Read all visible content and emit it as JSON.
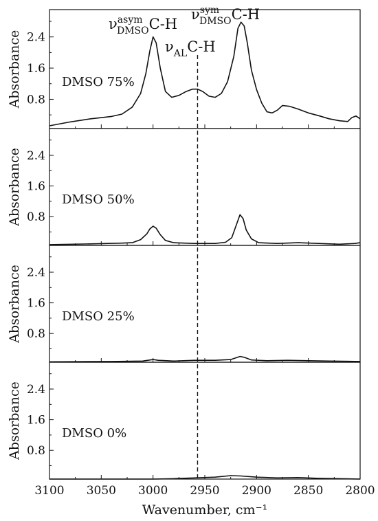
{
  "chart_data": {
    "type": "line",
    "layout": "stacked-panels",
    "xlabel": "Wavenumber, cm⁻¹",
    "xlim": [
      3100,
      2800
    ],
    "x_reversed": true,
    "x_ticks": [
      3100,
      3050,
      3000,
      2950,
      2900,
      2850,
      2800
    ],
    "x_tick_labels": [
      "3100",
      "3050",
      "3000",
      "2950",
      "2900",
      "2850",
      "2800"
    ],
    "ylabel": "Absorbance",
    "ylim": [
      0.05,
      3.1
    ],
    "y_ticks": [
      0.8,
      1.6,
      2.4
    ],
    "y_tick_labels": [
      "0.8",
      "1.6",
      "2.4"
    ],
    "grid": false,
    "reference_line": {
      "x": 2957,
      "style": "dashed"
    },
    "peak_labels": [
      {
        "base": "ν",
        "sup": "asym",
        "sub": "DMSO",
        "suffix": "C-H",
        "x": 3000
      },
      {
        "base": "ν",
        "sup": "",
        "sub": "AL",
        "suffix": "C-H",
        "x": 2957
      },
      {
        "base": "ν",
        "sup": "sym",
        "sub": "DMSO",
        "suffix": "C-H",
        "x": 2915
      }
    ],
    "panels": [
      {
        "label": "DMSO 75%",
        "points": [
          [
            3100,
            0.12
          ],
          [
            3080,
            0.22
          ],
          [
            3060,
            0.3
          ],
          [
            3040,
            0.36
          ],
          [
            3030,
            0.42
          ],
          [
            3020,
            0.6
          ],
          [
            3012,
            0.95
          ],
          [
            3007,
            1.45
          ],
          [
            3003,
            2.05
          ],
          [
            3000,
            2.4
          ],
          [
            2997,
            2.25
          ],
          [
            2993,
            1.6
          ],
          [
            2988,
            1.0
          ],
          [
            2982,
            0.85
          ],
          [
            2975,
            0.9
          ],
          [
            2968,
            1.0
          ],
          [
            2962,
            1.06
          ],
          [
            2957,
            1.06
          ],
          [
            2952,
            1.0
          ],
          [
            2946,
            0.88
          ],
          [
            2940,
            0.85
          ],
          [
            2934,
            0.95
          ],
          [
            2928,
            1.25
          ],
          [
            2922,
            1.9
          ],
          [
            2918,
            2.62
          ],
          [
            2915,
            2.78
          ],
          [
            2912,
            2.68
          ],
          [
            2909,
            2.25
          ],
          [
            2905,
            1.55
          ],
          [
            2900,
            1.05
          ],
          [
            2895,
            0.7
          ],
          [
            2890,
            0.48
          ],
          [
            2885,
            0.45
          ],
          [
            2880,
            0.52
          ],
          [
            2875,
            0.64
          ],
          [
            2868,
            0.62
          ],
          [
            2860,
            0.55
          ],
          [
            2850,
            0.45
          ],
          [
            2840,
            0.38
          ],
          [
            2830,
            0.3
          ],
          [
            2820,
            0.25
          ],
          [
            2812,
            0.23
          ],
          [
            2808,
            0.33
          ],
          [
            2804,
            0.37
          ],
          [
            2800,
            0.3
          ]
        ]
      },
      {
        "label": "DMSO 50%",
        "points": [
          [
            3100,
            0.07
          ],
          [
            3060,
            0.09
          ],
          [
            3030,
            0.11
          ],
          [
            3020,
            0.12
          ],
          [
            3012,
            0.2
          ],
          [
            3006,
            0.35
          ],
          [
            3003,
            0.48
          ],
          [
            3000,
            0.55
          ],
          [
            2997,
            0.5
          ],
          [
            2993,
            0.33
          ],
          [
            2988,
            0.18
          ],
          [
            2980,
            0.12
          ],
          [
            2960,
            0.1
          ],
          [
            2940,
            0.1
          ],
          [
            2930,
            0.13
          ],
          [
            2924,
            0.25
          ],
          [
            2920,
            0.55
          ],
          [
            2916,
            0.85
          ],
          [
            2913,
            0.75
          ],
          [
            2910,
            0.45
          ],
          [
            2905,
            0.22
          ],
          [
            2898,
            0.12
          ],
          [
            2880,
            0.1
          ],
          [
            2860,
            0.12
          ],
          [
            2840,
            0.1
          ],
          [
            2820,
            0.08
          ],
          [
            2805,
            0.1
          ],
          [
            2800,
            0.12
          ]
        ]
      },
      {
        "label": "DMSO 25%",
        "points": [
          [
            3100,
            0.06
          ],
          [
            3040,
            0.07
          ],
          [
            3010,
            0.08
          ],
          [
            3000,
            0.12
          ],
          [
            2995,
            0.1
          ],
          [
            2980,
            0.08
          ],
          [
            2960,
            0.1
          ],
          [
            2940,
            0.1
          ],
          [
            2925,
            0.12
          ],
          [
            2916,
            0.2
          ],
          [
            2912,
            0.18
          ],
          [
            2905,
            0.11
          ],
          [
            2890,
            0.09
          ],
          [
            2870,
            0.1
          ],
          [
            2850,
            0.09
          ],
          [
            2830,
            0.08
          ],
          [
            2800,
            0.07
          ]
        ]
      },
      {
        "label": "DMSO 0%",
        "points": [
          [
            3100,
            0.05
          ],
          [
            3050,
            0.05
          ],
          [
            3000,
            0.05
          ],
          [
            2980,
            0.06
          ],
          [
            2960,
            0.08
          ],
          [
            2940,
            0.1
          ],
          [
            2925,
            0.14
          ],
          [
            2915,
            0.13
          ],
          [
            2900,
            0.1
          ],
          [
            2880,
            0.08
          ],
          [
            2860,
            0.09
          ],
          [
            2840,
            0.07
          ],
          [
            2820,
            0.06
          ],
          [
            2800,
            0.05
          ]
        ]
      }
    ]
  }
}
